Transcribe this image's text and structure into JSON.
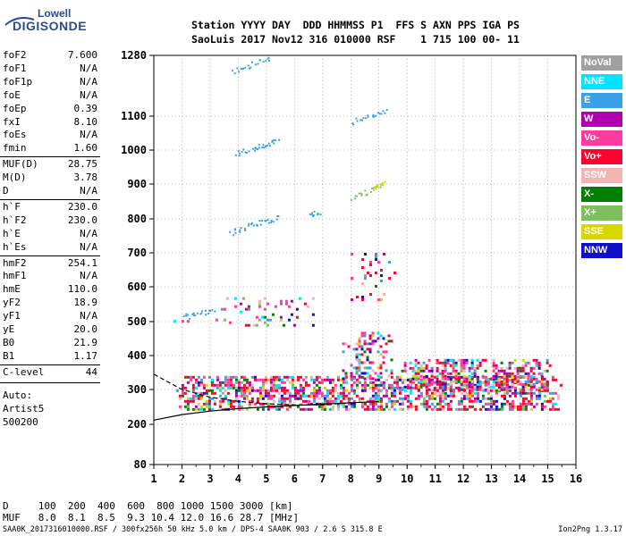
{
  "logo": {
    "line1": "Lowell",
    "line2": "DIGISONDE"
  },
  "header": {
    "line1": "Station YYYY DAY  DDD HHMMSS P1  FFS S AXN PPS IGA PS",
    "line2": "SaoLuis 2017 Nov12 316 010000 RSF    1 715 100 00- 11"
  },
  "params": [
    {
      "name": "foF2",
      "value": "7.600"
    },
    {
      "name": "foF1",
      "value": "N/A"
    },
    {
      "name": "foF1p",
      "value": "N/A"
    },
    {
      "name": "foE",
      "value": "N/A"
    },
    {
      "name": "foEp",
      "value": "0.39"
    },
    {
      "name": "fxI",
      "value": "8.10"
    },
    {
      "name": "foEs",
      "value": "N/A"
    },
    {
      "name": "fmin",
      "value": "1.60"
    },
    {
      "name": "MUF(D)",
      "value": "28.75"
    },
    {
      "name": "M(D)",
      "value": "3.78"
    },
    {
      "name": "D",
      "value": "N/A"
    },
    {
      "name": "h`F",
      "value": "230.0"
    },
    {
      "name": "h`F2",
      "value": "230.0"
    },
    {
      "name": "h`E",
      "value": "N/A"
    },
    {
      "name": "h`Es",
      "value": "N/A"
    },
    {
      "name": "hmF2",
      "value": "254.1"
    },
    {
      "name": "hmF1",
      "value": "N/A"
    },
    {
      "name": "hmE",
      "value": "110.0"
    },
    {
      "name": "yF2",
      "value": "18.9"
    },
    {
      "name": "yF1",
      "value": "N/A"
    },
    {
      "name": "yE",
      "value": "20.0"
    },
    {
      "name": "B0",
      "value": "21.9"
    },
    {
      "name": "B1",
      "value": "1.17"
    },
    {
      "name": "C-level",
      "value": "44"
    }
  ],
  "autoscale": {
    "line1": "Auto:",
    "line2": "Artist5",
    "line3": "500200"
  },
  "legend": [
    {
      "label": "NoVal",
      "color": "#a0a0a0"
    },
    {
      "label": "NNE",
      "color": "#00e5ff"
    },
    {
      "label": "E",
      "color": "#3aa0e8"
    },
    {
      "label": "W",
      "color": "#b000b0"
    },
    {
      "label": "Vo-",
      "color": "#ff3aa0"
    },
    {
      "label": "Vo+",
      "color": "#ff0030"
    },
    {
      "label": "SSW",
      "color": "#f4b4b4"
    },
    {
      "label": "X-",
      "color": "#008000"
    },
    {
      "label": "X+",
      "color": "#7cbf5c"
    },
    {
      "label": "SSE",
      "color": "#d8d800"
    },
    {
      "label": "NNW",
      "color": "#1010c8"
    }
  ],
  "muf_table": {
    "d_line": "D     100  200  400  600  800 1000 1500 3000 [km]",
    "muf_line": "MUF   8.0  8.1  8.5  9.3 10.4 12.0 16.6 28.7 [MHz]"
  },
  "footer": "SAA0K_2017316010000.RSF / 300fx256h 50 kHz 5.0 km / DPS-4 SAA0K 903 / 2.6 S 315.8 E",
  "version": "Ion2Png 1.3.17",
  "chart_data": {
    "type": "scatter",
    "xlim": [
      1,
      16
    ],
    "x_ticks": [
      1,
      2,
      3,
      4,
      5,
      6,
      7,
      8,
      9,
      10,
      11,
      12,
      13,
      14,
      15,
      16
    ],
    "y_ticks": [
      80,
      200,
      300,
      400,
      500,
      600,
      700,
      800,
      900,
      1000,
      1100,
      1280
    ],
    "y_tick_labels": [
      "80",
      "200",
      "300",
      "400",
      "500",
      "600",
      "700",
      "800",
      "900",
      "1000",
      "1100",
      "1280"
    ],
    "grid": true,
    "regions": [
      {
        "x": [
          1.6,
          15.5
        ],
        "y": [
          240,
          340
        ],
        "density": 0.55,
        "mix": "all"
      },
      {
        "x": [
          7.5,
          9.6
        ],
        "y": [
          330,
          470
        ],
        "density": 0.35,
        "mix": "all"
      },
      {
        "x": [
          9.6,
          15.2
        ],
        "y": [
          300,
          390
        ],
        "density": 0.45,
        "mix": "all"
      },
      {
        "x": [
          3.0,
          6.8
        ],
        "y": [
          490,
          570
        ],
        "density": 0.12,
        "mix": "all"
      },
      {
        "x": [
          7.8,
          9.6
        ],
        "y": [
          560,
          700
        ],
        "density": 0.1,
        "mix": "all"
      },
      {
        "x": [
          1.6,
          2.6
        ],
        "y": [
          490,
          520
        ],
        "density": 0.2,
        "mix": "all"
      }
    ],
    "traces": [
      {
        "color": "#3aa0e8",
        "points": [
          [
            3.9,
            990
          ],
          [
            4.5,
            1005
          ],
          [
            5.0,
            1020
          ],
          [
            5.4,
            1035
          ]
        ]
      },
      {
        "color": "#3aa0e8",
        "points": [
          [
            3.7,
            760
          ],
          [
            4.3,
            780
          ],
          [
            4.9,
            795
          ],
          [
            5.5,
            805
          ]
        ]
      },
      {
        "color": "#3aa0e8",
        "points": [
          [
            8.0,
            1085
          ],
          [
            8.7,
            1100
          ],
          [
            9.3,
            1115
          ]
        ]
      },
      {
        "color": "#3aa0e8",
        "points": [
          [
            2.0,
            515
          ],
          [
            2.6,
            525
          ],
          [
            3.2,
            530
          ]
        ]
      },
      {
        "color": "#7cbf5c",
        "points": [
          [
            8.0,
            860
          ],
          [
            8.6,
            880
          ],
          [
            9.2,
            900
          ]
        ]
      },
      {
        "color": "#d8d800",
        "points": [
          [
            8.8,
            890
          ],
          [
            9.2,
            905
          ]
        ]
      },
      {
        "color": "#3aa0e8",
        "points": [
          [
            6.5,
            815
          ],
          [
            6.9,
            820
          ]
        ]
      },
      {
        "color": "#3aa0e8",
        "points": [
          [
            3.8,
            1235
          ],
          [
            4.5,
            1255
          ],
          [
            5.2,
            1275
          ]
        ]
      }
    ],
    "curves": [
      {
        "style": "solid",
        "points": [
          [
            1.0,
            212
          ],
          [
            2.0,
            228
          ],
          [
            3.0,
            238
          ],
          [
            4.0,
            245
          ],
          [
            5.0,
            250
          ],
          [
            6.0,
            254
          ],
          [
            7.0,
            258
          ],
          [
            8.0,
            262
          ],
          [
            9.0,
            265
          ]
        ]
      },
      {
        "style": "dashed",
        "points": [
          [
            1.0,
            345
          ],
          [
            2.0,
            300
          ],
          [
            3.0,
            278
          ],
          [
            4.0,
            266
          ],
          [
            5.0,
            259
          ],
          [
            6.0,
            256
          ],
          [
            7.0,
            256
          ],
          [
            8.0,
            262
          ]
        ]
      }
    ]
  }
}
